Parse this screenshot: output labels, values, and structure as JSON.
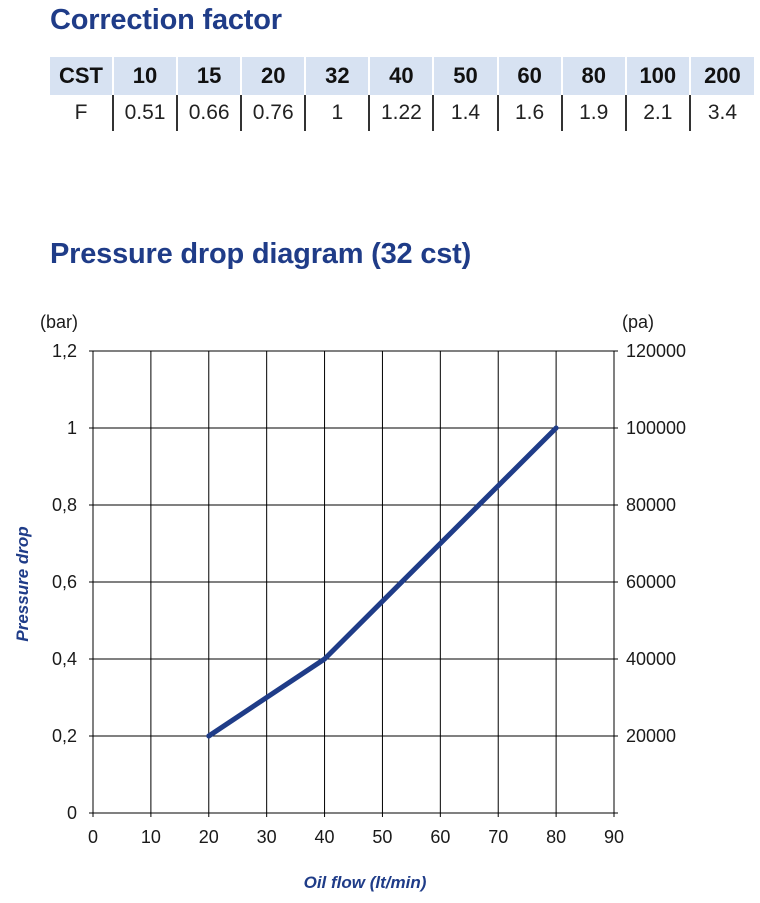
{
  "correction_factor": {
    "title": "Correction factor",
    "header_label": "CST",
    "row_label": "F",
    "columns": [
      {
        "cst": "10",
        "f": "0.51"
      },
      {
        "cst": "15",
        "f": "0.66"
      },
      {
        "cst": "20",
        "f": "0.76"
      },
      {
        "cst": "32",
        "f": "1"
      },
      {
        "cst": "40",
        "f": "1.22"
      },
      {
        "cst": "50",
        "f": "1.4"
      },
      {
        "cst": "60",
        "f": "1.6"
      },
      {
        "cst": "80",
        "f": "1.9"
      },
      {
        "cst": "100",
        "f": "2.1"
      },
      {
        "cst": "200",
        "f": "3.4"
      }
    ]
  },
  "colors": {
    "title": "#1f3c88",
    "line": "#1f3c88",
    "header_bg": "#d7e2f2",
    "grid": "#000000"
  },
  "chart_data": {
    "type": "line",
    "title": "Pressure drop diagram (32 cst)",
    "xlabel": "Oil flow  (lt/min)",
    "ylabel": "Pressure  drop",
    "y_unit_left": "(bar)",
    "y_unit_right": "(pa)",
    "xlim": [
      0,
      90
    ],
    "ylim": [
      0,
      1.2
    ],
    "x_ticks": [
      "0",
      "10",
      "20",
      "30",
      "40",
      "50",
      "60",
      "70",
      "80",
      "90"
    ],
    "x_tick_values": [
      0,
      10,
      20,
      30,
      40,
      50,
      60,
      70,
      80,
      90
    ],
    "y_ticks_left": [
      "0",
      "0,2",
      "0,4",
      "0,6",
      "0,8",
      "1",
      "1,2"
    ],
    "y_tick_values": [
      0,
      0.2,
      0.4,
      0.6,
      0.8,
      1.0,
      1.2
    ],
    "y_ticks_right": [
      "",
      "20000",
      "40000",
      "60000",
      "80000",
      "100000",
      "120000"
    ],
    "grid": true,
    "series": [
      {
        "x": [
          20,
          40,
          80
        ],
        "y": [
          0.2,
          0.4,
          1.0
        ]
      }
    ]
  }
}
